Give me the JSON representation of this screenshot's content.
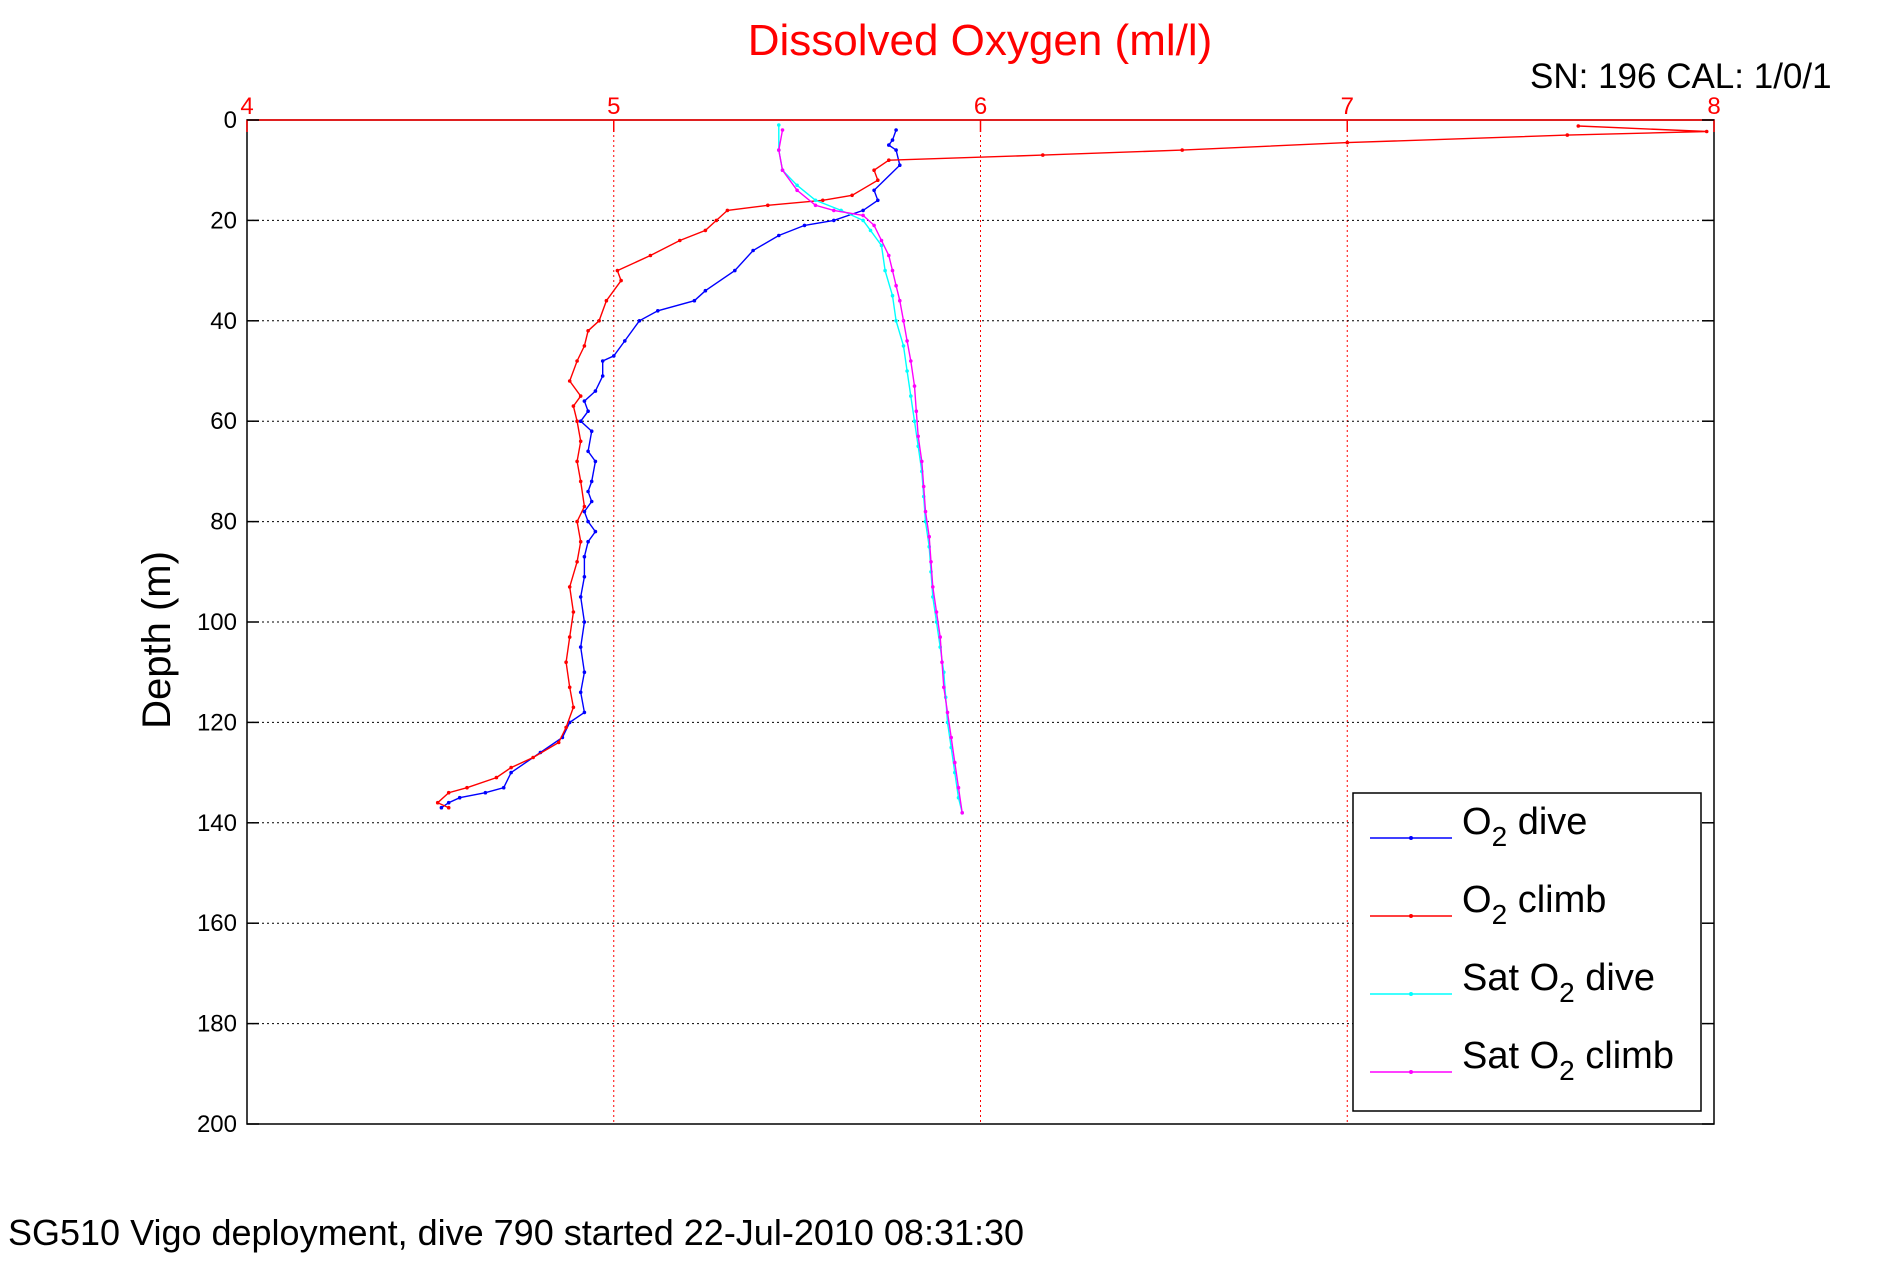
{
  "figure": {
    "sn_label": "SN: 196  CAL: 1/0/1",
    "caption": "SG510 Vigo deployment, dive 790 started 22-Jul-2010 08:31:30"
  },
  "chart_data": {
    "type": "line",
    "title": "Dissolved Oxygen (ml/l)",
    "xlabel": "",
    "ylabel": "Depth (m)",
    "xlim": [
      4,
      8
    ],
    "ylim": [
      0,
      200
    ],
    "y_reversed": true,
    "x_axis_position": "top",
    "x_ticks": [
      4,
      5,
      6,
      7,
      8
    ],
    "y_ticks": [
      0,
      20,
      40,
      60,
      80,
      100,
      120,
      140,
      160,
      180,
      200
    ],
    "grid": true,
    "legend_position": "bottom-right",
    "colors": {
      "axis_x": "#ff0000",
      "axis_y": "#000000",
      "grid_x": "#ff0000",
      "grid_y": "#000000"
    },
    "series": [
      {
        "name": "O2 dive",
        "legend": {
          "pre": "O",
          "sub": "2",
          "post": " dive"
        },
        "color": "#0000ff",
        "points": [
          [
            5.77,
            2
          ],
          [
            5.76,
            4
          ],
          [
            5.75,
            5
          ],
          [
            5.77,
            6
          ],
          [
            5.78,
            9
          ],
          [
            5.71,
            14
          ],
          [
            5.72,
            16
          ],
          [
            5.68,
            18
          ],
          [
            5.6,
            20
          ],
          [
            5.52,
            21
          ],
          [
            5.45,
            23
          ],
          [
            5.38,
            26
          ],
          [
            5.33,
            30
          ],
          [
            5.25,
            34
          ],
          [
            5.22,
            36
          ],
          [
            5.12,
            38
          ],
          [
            5.07,
            40
          ],
          [
            5.03,
            44
          ],
          [
            5.0,
            47
          ],
          [
            4.97,
            48
          ],
          [
            4.97,
            51
          ],
          [
            4.95,
            54
          ],
          [
            4.92,
            56
          ],
          [
            4.93,
            58
          ],
          [
            4.91,
            60
          ],
          [
            4.94,
            62
          ],
          [
            4.93,
            66
          ],
          [
            4.95,
            68
          ],
          [
            4.94,
            72
          ],
          [
            4.93,
            74
          ],
          [
            4.94,
            76
          ],
          [
            4.92,
            78
          ],
          [
            4.93,
            80
          ],
          [
            4.95,
            82
          ],
          [
            4.93,
            84
          ],
          [
            4.92,
            87
          ],
          [
            4.92,
            91
          ],
          [
            4.91,
            95
          ],
          [
            4.92,
            100
          ],
          [
            4.91,
            105
          ],
          [
            4.92,
            110
          ],
          [
            4.91,
            114
          ],
          [
            4.92,
            118
          ],
          [
            4.88,
            120
          ],
          [
            4.86,
            123
          ],
          [
            4.8,
            126
          ],
          [
            4.72,
            130
          ],
          [
            4.7,
            133
          ],
          [
            4.65,
            134
          ],
          [
            4.58,
            135
          ],
          [
            4.55,
            136
          ],
          [
            4.53,
            137
          ]
        ]
      },
      {
        "name": "O2 climb",
        "legend": {
          "pre": "O",
          "sub": "2",
          "post": " climb"
        },
        "color": "#ff0000",
        "points": [
          [
            4.55,
            137
          ],
          [
            4.52,
            136
          ],
          [
            4.55,
            134
          ],
          [
            4.6,
            133
          ],
          [
            4.68,
            131
          ],
          [
            4.72,
            129
          ],
          [
            4.78,
            127
          ],
          [
            4.85,
            124
          ],
          [
            4.87,
            121
          ],
          [
            4.89,
            117
          ],
          [
            4.88,
            113
          ],
          [
            4.87,
            108
          ],
          [
            4.88,
            103
          ],
          [
            4.89,
            98
          ],
          [
            4.88,
            93
          ],
          [
            4.9,
            88
          ],
          [
            4.91,
            84
          ],
          [
            4.9,
            80
          ],
          [
            4.92,
            77
          ],
          [
            4.91,
            72
          ],
          [
            4.9,
            68
          ],
          [
            4.91,
            64
          ],
          [
            4.9,
            60
          ],
          [
            4.89,
            57
          ],
          [
            4.91,
            55
          ],
          [
            4.88,
            52
          ],
          [
            4.9,
            48
          ],
          [
            4.92,
            45
          ],
          [
            4.93,
            42
          ],
          [
            4.96,
            40
          ],
          [
            4.98,
            36
          ],
          [
            5.02,
            32
          ],
          [
            5.01,
            30
          ],
          [
            5.1,
            27
          ],
          [
            5.18,
            24
          ],
          [
            5.25,
            22
          ],
          [
            5.28,
            20
          ],
          [
            5.31,
            18
          ],
          [
            5.42,
            17
          ],
          [
            5.57,
            16
          ],
          [
            5.65,
            15
          ],
          [
            5.72,
            12
          ],
          [
            5.71,
            10
          ],
          [
            5.75,
            8
          ],
          [
            6.17,
            7
          ],
          [
            6.55,
            6
          ],
          [
            7.0,
            4.5
          ],
          [
            7.6,
            3
          ],
          [
            7.98,
            2.3
          ],
          [
            7.63,
            1.2
          ]
        ]
      },
      {
        "name": "Sat O2 dive",
        "legend": {
          "pre": "Sat O",
          "sub": "2",
          "post": " dive"
        },
        "color": "#00ffff",
        "points": [
          [
            5.45,
            1
          ],
          [
            5.45,
            6
          ],
          [
            5.46,
            10
          ],
          [
            5.5,
            13
          ],
          [
            5.55,
            16
          ],
          [
            5.62,
            18
          ],
          [
            5.68,
            20
          ],
          [
            5.7,
            22
          ],
          [
            5.73,
            25
          ],
          [
            5.74,
            30
          ],
          [
            5.76,
            35
          ],
          [
            5.77,
            40
          ],
          [
            5.79,
            45
          ],
          [
            5.8,
            50
          ],
          [
            5.81,
            55
          ],
          [
            5.82,
            60
          ],
          [
            5.83,
            65
          ],
          [
            5.84,
            70
          ],
          [
            5.845,
            75
          ],
          [
            5.85,
            80
          ],
          [
            5.86,
            85
          ],
          [
            5.865,
            90
          ],
          [
            5.87,
            95
          ],
          [
            5.88,
            100
          ],
          [
            5.89,
            105
          ],
          [
            5.9,
            110
          ],
          [
            5.905,
            115
          ],
          [
            5.91,
            120
          ],
          [
            5.92,
            125
          ],
          [
            5.93,
            130
          ],
          [
            5.94,
            135
          ],
          [
            5.95,
            138
          ]
        ]
      },
      {
        "name": "Sat O2 climb",
        "legend": {
          "pre": "Sat O",
          "sub": "2",
          "post": " climb"
        },
        "color": "#ff00ff",
        "points": [
          [
            5.95,
            138
          ],
          [
            5.94,
            133
          ],
          [
            5.93,
            128
          ],
          [
            5.92,
            123
          ],
          [
            5.91,
            118
          ],
          [
            5.9,
            113
          ],
          [
            5.895,
            108
          ],
          [
            5.89,
            103
          ],
          [
            5.88,
            98
          ],
          [
            5.87,
            93
          ],
          [
            5.865,
            88
          ],
          [
            5.86,
            83
          ],
          [
            5.85,
            78
          ],
          [
            5.845,
            73
          ],
          [
            5.84,
            68
          ],
          [
            5.83,
            63
          ],
          [
            5.825,
            58
          ],
          [
            5.82,
            53
          ],
          [
            5.81,
            48
          ],
          [
            5.8,
            44
          ],
          [
            5.79,
            40
          ],
          [
            5.78,
            36
          ],
          [
            5.77,
            33
          ],
          [
            5.76,
            30
          ],
          [
            5.75,
            27
          ],
          [
            5.73,
            24
          ],
          [
            5.71,
            21
          ],
          [
            5.68,
            19
          ],
          [
            5.6,
            18
          ],
          [
            5.55,
            17
          ],
          [
            5.5,
            14
          ],
          [
            5.46,
            10
          ],
          [
            5.45,
            6
          ],
          [
            5.46,
            2
          ]
        ]
      }
    ]
  }
}
